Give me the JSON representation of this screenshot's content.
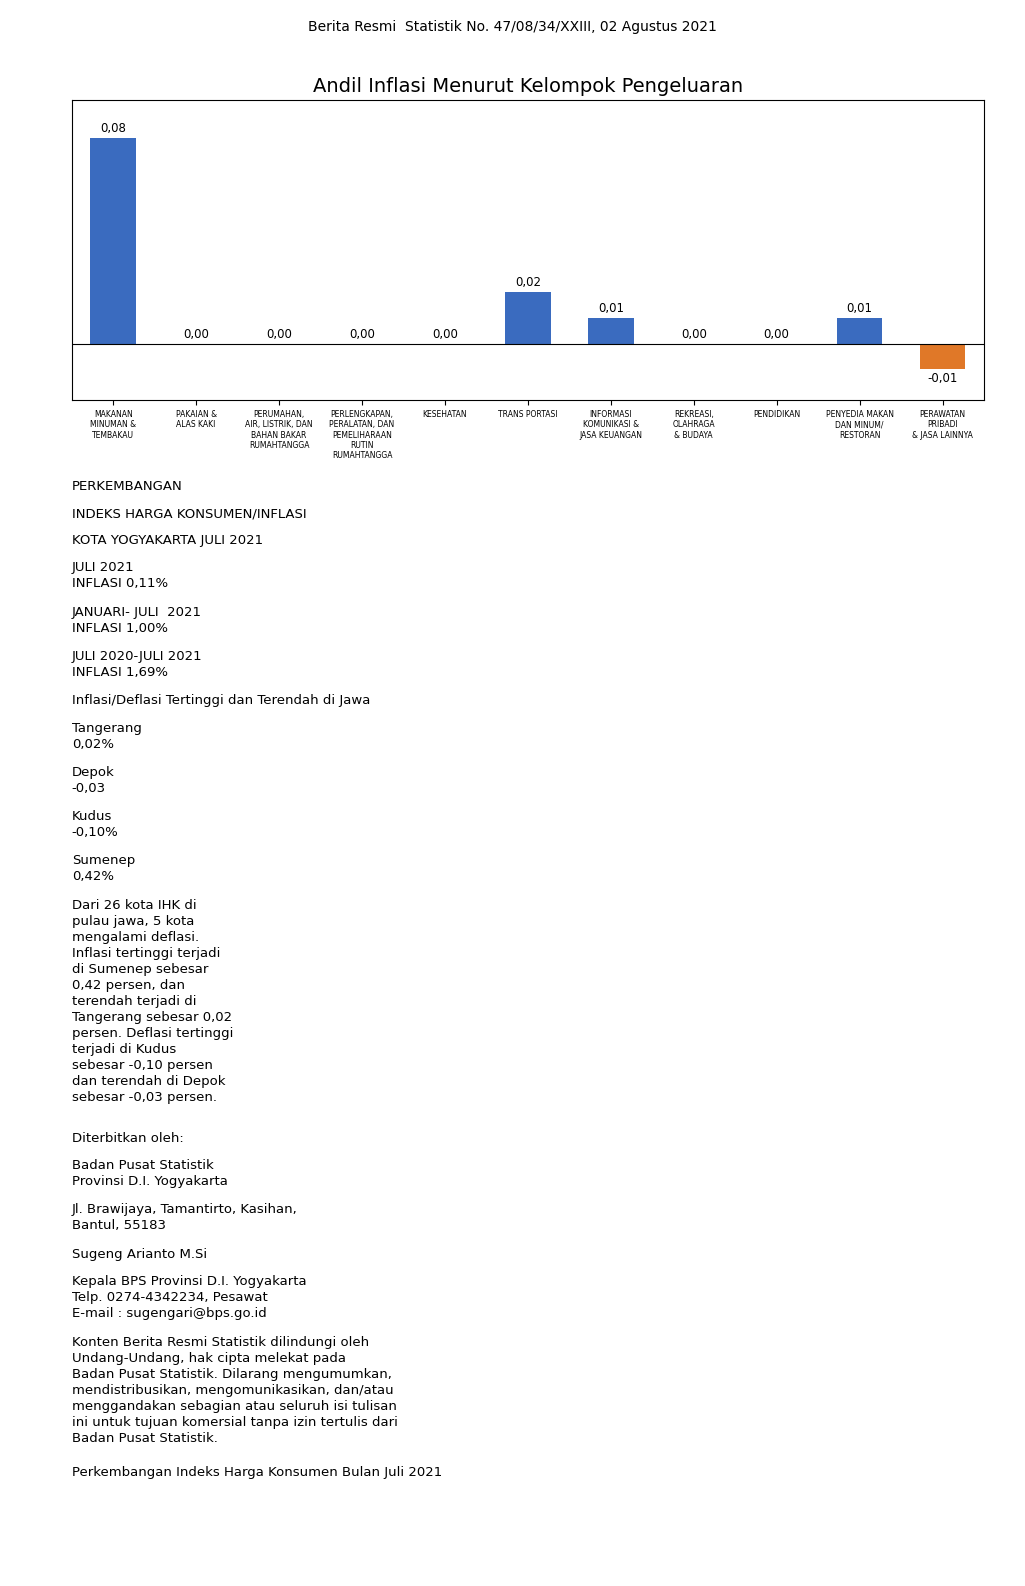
{
  "chart_data": {
    "type": "bar",
    "title": "Andil Inflasi Menurut Kelompok Pengeluaran",
    "subtitle": "Berita Resmi  Statistik No. 47/08/34/XXIII, 02 Agustus 2021",
    "categories": [
      "MAKANAN\nMINUMAN &\nTEMBAKAU",
      "PAKAIAN &\nALAS KAKI",
      "PERUMAHAN,\nAIR, LISTRIK, DAN\nBAHAN BAKAR\nRUMAHTANGGA",
      "PERLENGKAPAN,\nPERALATAN, DAN\nPEMELIHARAAN\nRUTIN\nRUMAHTANGGA",
      "KESEHATAN",
      "TRANS PORTASI",
      "INFORMASI\nKOMUNIKASI &\nJASA KEUANGAN",
      "REKREASI,\nOLAHRAGA\n& BUDAYA",
      "PENDIDIKAN",
      "PENYEDIA MAKAN\nDAN MINUM/\nRESTORAN",
      "PERAWATAN\nPRIBADI\n& JASA LAINNYA"
    ],
    "values": [
      0.08,
      0.0,
      0.0,
      0.0,
      0.0,
      0.02,
      0.01,
      0.0,
      0.0,
      0.01,
      -0.01
    ],
    "value_labels": [
      "0,08",
      "0,00",
      "0,00",
      "0,00",
      "0,00",
      "0,02",
      "0,01",
      "0,00",
      "0,00",
      "0,01",
      "-0,01"
    ],
    "data_labels": true,
    "colors": [
      "#3a6bbf",
      "#3a6bbf",
      "#3a6bbf",
      "#3a6bbf",
      "#3a6bbf",
      "#3a6bbf",
      "#3a6bbf",
      "#3a6bbf",
      "#3a6bbf",
      "#3a6bbf",
      "#e07828"
    ],
    "ylim": [
      -0.022,
      0.095
    ],
    "yticks": [],
    "tick_labels": "x",
    "grid": false,
    "annotations": [
      "PERKEMBANGAN",
      "INDEKS HARGA KONSUMEN/INFLASI",
      "KOTA YOGYAKARTA JULI 2021",
      "JULI 2021\nINFLASI 0,11%",
      "JANUARI- JULI  2021\nINFLASI 1,00%",
      "JULI 2020-JULI 2021\nINFLASI 1,69%",
      "Inflasi/Deflasi Tertinggi dan Terendah di Jawa",
      "Tangerang\n0,02%",
      "Depok\n-0,03",
      "Kudus\n-0,10%",
      "Sumenep\n0,42%",
      "Dari 26 kota IHK di\npulau jawa, 5 kota\nmengalami deflasi.\nInflasi tertinggi terjadi\ndi Sumenep sebesar\n0,42 persen, dan\nterendah terjadi di\nTangerang sebesar 0,02\npersen. Deflasi tertinggi\nterjadi di Kudus\nsebesar -0,10 persen\ndan terendah di Depok\nsebesar -0,03 persen.",
      "Diterbitkan oleh:",
      "Badan Pusat Statistik\nProvinsi D.I. Yogyakarta",
      "Jl. Brawijaya, Tamantirto, Kasihan,\nBantul, 55183",
      "Sugeng Arianto M.Si",
      "Kepala BPS Provinsi D.I. Yogyakarta\nTelp. 0274-4342234, Pesawat\nE-mail : sugengari@bps.go.id",
      "Konten Berita Resmi Statistik dilindungi oleh\nUndang-Undang, hak cipta melekat pada\nBadan Pusat Statistik. Dilarang mengumumkan,\nmendistribusikan, mengomunikasikan, dan/atau\nmenggandakan sebagian atau seluruh isi tulisan\nini untuk tujuan komersial tanpa izin tertulis dari\nBadan Pusat Statistik.",
      "Perkembangan Indeks Harga Konsumen Bulan Juli 2021"
    ]
  }
}
